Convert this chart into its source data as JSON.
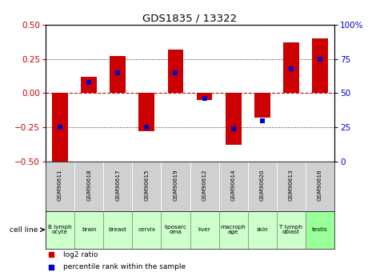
{
  "title": "GDS1835 / 13322",
  "gsm_labels": [
    "GSM90611",
    "GSM90618",
    "GSM90617",
    "GSM90615",
    "GSM90619",
    "GSM90612",
    "GSM90614",
    "GSM90620",
    "GSM90613",
    "GSM90616"
  ],
  "cell_labels": [
    "B lymph\nocyte",
    "brain",
    "breast",
    "cervix",
    "liposarc\noma",
    "liver",
    "macroph\nage",
    "skin",
    "T lymph\noblast",
    "testis"
  ],
  "cell_colors": [
    "#ccffcc",
    "#ccffcc",
    "#ccffcc",
    "#ccffcc",
    "#ccffcc",
    "#ccffcc",
    "#ccffcc",
    "#ccffcc",
    "#ccffcc",
    "#99ff99"
  ],
  "log2_ratios": [
    -0.5,
    0.12,
    0.27,
    -0.28,
    0.32,
    -0.05,
    -0.38,
    -0.18,
    0.37,
    0.4
  ],
  "percentile_ranks": [
    25,
    58,
    65,
    25,
    65,
    46,
    24,
    30,
    68,
    75
  ],
  "ylim_left": [
    -0.5,
    0.5
  ],
  "ylim_right": [
    0,
    100
  ],
  "yticks_left": [
    -0.5,
    -0.25,
    0,
    0.25,
    0.5
  ],
  "yticks_right": [
    0,
    25,
    50,
    75,
    100
  ],
  "bar_color": "#cc0000",
  "dot_color": "#0000cc",
  "zero_line_color": "#cc0000",
  "bg_color": "#ffffff",
  "gsm_bg": "#d0d0d0",
  "legend_bar_label": "log2 ratio",
  "legend_dot_label": "percentile rank within the sample",
  "cell_line_label": "cell line"
}
